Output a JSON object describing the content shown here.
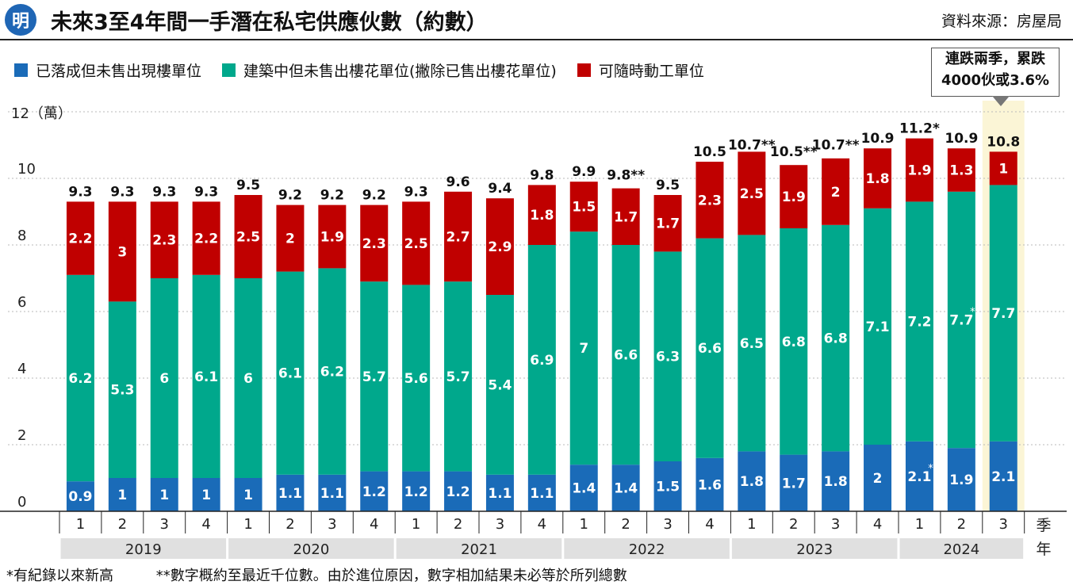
{
  "header": {
    "logo_text": "明",
    "title": "未來3至4年間一手潛在私宅供應伙數（約數）",
    "source": "資料來源：房屋局"
  },
  "legend": [
    {
      "label": "已落成但未售出現樓單位",
      "color": "#1a6bb8"
    },
    {
      "label": "建築中但未售出樓花單位(撇除已售出樓花單位)",
      "color": "#00a88c"
    },
    {
      "label": "可隨時動工單位",
      "color": "#c00000"
    }
  ],
  "callout": {
    "line1": "連跌兩季，累跌",
    "line2": "4000伙或3.6%"
  },
  "colors": {
    "highlight": "#fbf5d6",
    "year_band": "#e0e0e0",
    "grid": "#b9b9b9"
  },
  "chart_data": {
    "type": "bar",
    "stacked": true,
    "ylabel": "12（萬）",
    "ylim": [
      0,
      12
    ],
    "yticks": [
      "0",
      "2",
      "4",
      "6",
      "8",
      "10"
    ],
    "grid": "horizontal dotted",
    "xlabel": [
      "季",
      "年"
    ],
    "years": [
      "2019",
      "2020",
      "2021",
      "2022",
      "2023",
      "2024"
    ],
    "quarters": [
      "1",
      "2",
      "3",
      "4",
      "1",
      "2",
      "3",
      "4",
      "1",
      "2",
      "3",
      "4",
      "1",
      "2",
      "3",
      "4",
      "1",
      "2",
      "3",
      "4",
      "1",
      "2",
      "3"
    ],
    "year_groups": [
      [
        0,
        3
      ],
      [
        4,
        7
      ],
      [
        8,
        11
      ],
      [
        12,
        15
      ],
      [
        16,
        19
      ],
      [
        20,
        22
      ]
    ],
    "highlight_index": 22,
    "series": [
      {
        "name": "已落成但未售出現樓單位",
        "values": [
          0.9,
          1,
          1,
          1,
          1,
          1.1,
          1.1,
          1.2,
          1.2,
          1.2,
          1.1,
          1.1,
          1.4,
          1.4,
          1.5,
          1.6,
          1.8,
          1.7,
          1.8,
          2,
          2.1,
          1.9,
          2.1
        ],
        "labels": [
          "0.9",
          "1",
          "1",
          "1",
          "1",
          "1.1",
          "1.1",
          "1.2",
          "1.2",
          "1.2",
          "1.1",
          "1.1",
          "1.4",
          "1.4",
          "1.5",
          "1.6",
          "1.8",
          "1.7",
          "1.8",
          "2",
          "2.1*",
          "1.9",
          "2.1"
        ]
      },
      {
        "name": "建築中但未售出樓花單位(撇除已售出樓花單位)",
        "values": [
          6.2,
          5.3,
          6,
          6.1,
          6,
          6.1,
          6.2,
          5.7,
          5.6,
          5.7,
          5.4,
          6.9,
          7,
          6.6,
          6.3,
          6.6,
          6.5,
          6.8,
          6.8,
          7.1,
          7.2,
          7.7,
          7.7
        ],
        "labels": [
          "6.2",
          "5.3",
          "6",
          "6.1",
          "6",
          "6.1",
          "6.2",
          "5.7",
          "5.6",
          "5.7",
          "5.4",
          "6.9",
          "7",
          "6.6",
          "6.3",
          "6.6",
          "6.5",
          "6.8",
          "6.8",
          "7.1",
          "7.2",
          "7.7*",
          "7.7"
        ]
      },
      {
        "name": "可隨時動工單位",
        "values": [
          2.2,
          3,
          2.3,
          2.2,
          2.5,
          2,
          1.9,
          2.3,
          2.5,
          2.7,
          2.9,
          1.8,
          1.5,
          1.7,
          1.7,
          2.3,
          2.5,
          1.9,
          2,
          1.8,
          1.9,
          1.3,
          1
        ],
        "labels": [
          "2.2",
          "3",
          "2.3",
          "2.2",
          "2.5",
          "2",
          "1.9",
          "2.3",
          "2.5",
          "2.7",
          "2.9",
          "1.8",
          "1.5",
          "1.7",
          "1.7",
          "2.3",
          "2.5",
          "1.9",
          "2",
          "1.8",
          "1.9",
          "1.3",
          "1"
        ]
      }
    ],
    "totals": [
      9.3,
      9.3,
      9.3,
      9.3,
      9.5,
      9.2,
      9.2,
      9.2,
      9.3,
      9.6,
      9.4,
      9.8,
      9.9,
      9.8,
      9.5,
      10.5,
      10.7,
      10.5,
      10.7,
      10.9,
      11.2,
      10.9,
      10.8
    ],
    "total_labels": [
      "9.3",
      "9.3",
      "9.3",
      "9.3",
      "9.5",
      "9.2",
      "9.2",
      "9.2",
      "9.3",
      "9.6",
      "9.4",
      "9.8",
      "9.9",
      "9.8**",
      "9.5",
      "10.5",
      "10.7**",
      "10.5**",
      "10.7**",
      "10.9",
      "11.2*",
      "10.9",
      "10.8"
    ]
  },
  "footnotes": [
    "*有紀錄以來新高",
    "**數字概約至最近千位數。由於進位原因，數字相加結果未必等於所列總數"
  ]
}
